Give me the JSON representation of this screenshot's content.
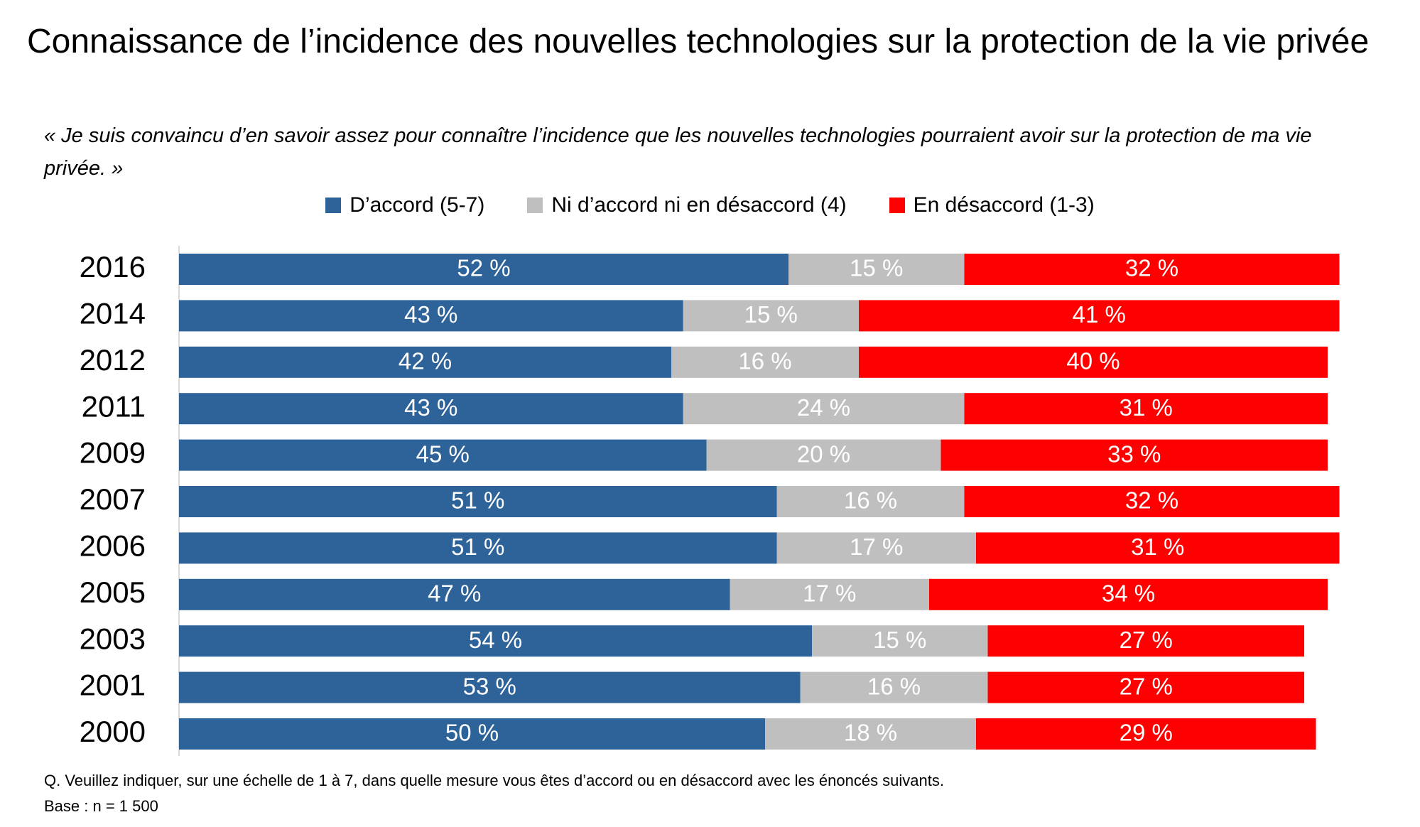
{
  "chart_data": {
    "type": "stacked-bar",
    "title": "Connaissance de l’incidence des nouvelles technologies sur la protection de la vie privée",
    "subtitle": "« Je suis convaincu d’en savoir assez pour connaître l’incidence que les nouvelles technologies pourraient avoir sur la protection de ma vie privée. »",
    "categories": [
      "2016",
      "2014",
      "2012",
      "2011",
      "2009",
      "2007",
      "2006",
      "2005",
      "2003",
      "2001",
      "2000"
    ],
    "series": [
      {
        "name": "D’accord (5-7)",
        "color": "#2e6399",
        "values": [
          52,
          43,
          42,
          43,
          45,
          51,
          51,
          47,
          54,
          53,
          50
        ],
        "value_labels": [
          "52 %",
          "43 %",
          "42 %",
          "43 %",
          "45 %",
          "51 %",
          "51 %",
          "47 %",
          "54 %",
          "53 %",
          "50 %"
        ]
      },
      {
        "name": "Ni d’accord ni en désaccord (4)",
        "color": "#bfbfbf",
        "values": [
          15,
          15,
          16,
          24,
          20,
          16,
          17,
          17,
          15,
          16,
          18
        ],
        "value_labels": [
          "15 %",
          "15 %",
          "16 %",
          "24 %",
          "20 %",
          "16 %",
          "17 %",
          "17 %",
          "15 %",
          "16 %",
          "18 %"
        ]
      },
      {
        "name": "En désaccord (1-3)",
        "color": "#ff0000",
        "values": [
          32,
          41,
          40,
          31,
          33,
          32,
          31,
          34,
          27,
          27,
          29
        ],
        "value_labels": [
          "32 %",
          "41 %",
          "40 %",
          "31 %",
          "33 %",
          "32 %",
          "31 %",
          "34 %",
          "27 %",
          "27 %",
          "29 %"
        ]
      }
    ],
    "notes": [
      "Q. Veuillez indiquer, sur une échelle de 1 à 7, dans quelle mesure vous êtes d’accord ou en désaccord avec les énoncés suivants.",
      "Base : n = 1 500"
    ]
  }
}
